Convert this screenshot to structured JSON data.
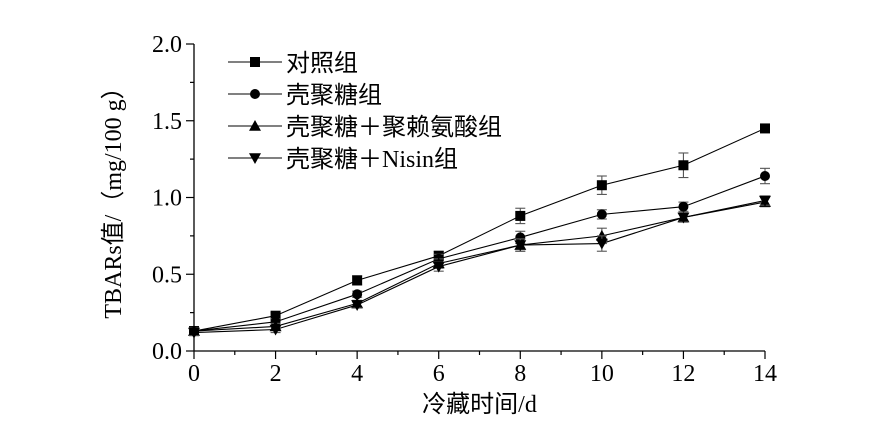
{
  "chart_data": {
    "type": "line",
    "xlabel": "冷藏时间/d",
    "ylabel": "TBARs值/（mg/100 g）",
    "xlim": [
      0,
      14
    ],
    "ylim": [
      0.0,
      2.0
    ],
    "xticks": [
      "0",
      "2",
      "4",
      "6",
      "8",
      "10",
      "12",
      "14"
    ],
    "yticks": [
      "0.0",
      "0.5",
      "1.0",
      "1.5",
      "2.0"
    ],
    "x": [
      0,
      2,
      4,
      6,
      8,
      10,
      12,
      14
    ],
    "grid": false,
    "legend_position": "top-left",
    "series": [
      {
        "name": "对照组",
        "marker": "square",
        "color": "#000000",
        "values": [
          0.13,
          0.23,
          0.46,
          0.62,
          0.88,
          1.08,
          1.21,
          1.45
        ],
        "errors": [
          0.02,
          0.02,
          0.03,
          0.03,
          0.05,
          0.06,
          0.08,
          0.02
        ]
      },
      {
        "name": "壳聚糖组",
        "marker": "circle",
        "color": "#000000",
        "values": [
          0.13,
          0.19,
          0.37,
          0.6,
          0.74,
          0.89,
          0.94,
          1.14
        ],
        "errors": [
          0.02,
          0.02,
          0.02,
          0.03,
          0.04,
          0.03,
          0.03,
          0.05
        ]
      },
      {
        "name": "壳聚糖＋聚赖氨酸组",
        "marker": "triangle-up",
        "color": "#000000",
        "values": [
          0.13,
          0.16,
          0.31,
          0.57,
          0.69,
          0.75,
          0.87,
          0.97
        ],
        "errors": [
          0.02,
          0.02,
          0.02,
          0.03,
          0.04,
          0.05,
          0.03,
          0.03
        ]
      },
      {
        "name": "壳聚糖＋Nisin组",
        "marker": "triangle-down",
        "color": "#000000",
        "values": [
          0.12,
          0.14,
          0.3,
          0.55,
          0.69,
          0.7,
          0.87,
          0.98
        ],
        "errors": [
          0.02,
          0.02,
          0.02,
          0.03,
          0.04,
          0.05,
          0.03,
          0.03
        ]
      }
    ]
  }
}
